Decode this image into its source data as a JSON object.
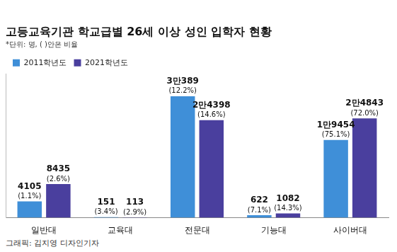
{
  "chart_data": {
    "type": "bar",
    "title": "고등교육기관 학교급별 26세 이상 성인 입학자 현황",
    "subtitle": "*단위: 명, ( )안은 비율",
    "credit": "그래픽: 김지영 디자인기자",
    "categories": [
      "일반대",
      "교육대",
      "전문대",
      "기능대",
      "사이버대"
    ],
    "series": [
      {
        "name": "2011학년도",
        "color": "#3f8fd8",
        "values": [
          4105,
          151,
          30389,
          622,
          19454
        ],
        "value_labels": [
          "4105",
          "151",
          "3만389",
          "622",
          "1만9454"
        ],
        "share_labels": [
          "(1.1%)",
          "(3.4%)",
          "(12.2%)",
          "(7.1%)",
          "(75.1%)"
        ]
      },
      {
        "name": "2021학년도",
        "color": "#4a3f9e",
        "values": [
          8435,
          113,
          24398,
          1082,
          24843
        ],
        "value_labels": [
          "8435",
          "113",
          "2만4398",
          "1082",
          "2만4843"
        ],
        "share_labels": [
          "(2.6%)",
          "(2.9%)",
          "(14.6%)",
          "(14.3%)",
          "(72.0%)"
        ]
      }
    ],
    "ylim": [
      0,
      36000
    ],
    "tick_labels": "x",
    "grid": false,
    "legend": "top-left",
    "data_labels": true
  }
}
